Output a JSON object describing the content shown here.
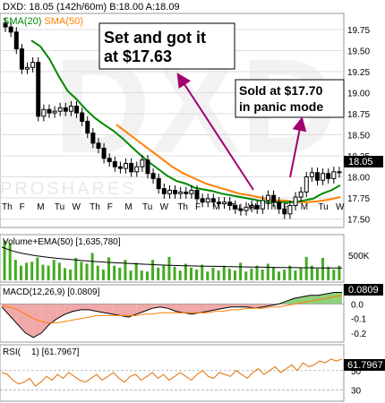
{
  "header": {
    "ticker": "DXD",
    "last": "18.05",
    "interval": "(142h/60m)",
    "bid": "B:18.00",
    "ask": "A:18.09"
  },
  "watermark": {
    "logo_text": "DXD",
    "brand": "PROSHARES"
  },
  "legend_sma20": "SMA(20)",
  "legend_sma50": "SMA(50)",
  "annotation_buy": [
    "Set and got it",
    "at $17.63"
  ],
  "annotation_sell": [
    "Sold at $17.70",
    "in panic mode"
  ],
  "last_price_label": "18.05",
  "colors": {
    "candles": "#000000",
    "sma20": "#008800",
    "sma50": "#ff7f00",
    "arrow": "#a00070",
    "volume_bar": "#44aa22",
    "ema_line": "#000000",
    "macd_fill_pos": "#8ed07a",
    "macd_fill_neg": "#f0a8a8",
    "macd_line": "#000000",
    "signal_line": "#ff7f00",
    "rsi_line": "#e07000",
    "last_label_bg": "#000000"
  },
  "chart_data": [
    {
      "type": "candlestick",
      "title": "DXD: 18.05 (142h/60m) B:18.00 A:18.09",
      "x_tick_labels": [
        "Th",
        "F",
        "M",
        "Tu",
        "W",
        "Th",
        "F",
        "M",
        "Tu",
        "W",
        "Th",
        "F",
        "M",
        "Tu",
        "W",
        "Th",
        "F",
        "M",
        "Tu",
        "W"
      ],
      "y_ticks": [
        17.5,
        17.75,
        18.0,
        18.25,
        18.5,
        18.75,
        19.0,
        19.25,
        19.5,
        19.75
      ],
      "ylim": [
        17.42,
        19.92
      ],
      "close": [
        19.78,
        19.72,
        19.52,
        19.28,
        19.3,
        19.36,
        18.72,
        18.8,
        18.76,
        18.78,
        18.82,
        18.78,
        18.84,
        18.76,
        18.66,
        18.52,
        18.4,
        18.34,
        18.22,
        18.18,
        18.12,
        18.1,
        18.16,
        18.06,
        18.12,
        18.2,
        18.04,
        17.98,
        17.86,
        17.8,
        17.84,
        17.8,
        17.82,
        17.8,
        17.84,
        17.74,
        17.7,
        17.74,
        17.7,
        17.68,
        17.7,
        17.66,
        17.62,
        17.6,
        17.64,
        17.66,
        17.62,
        17.72,
        17.78,
        17.7,
        17.62,
        17.56,
        17.66,
        17.76,
        17.82,
        18.0,
        18.05,
        17.96,
        18.04,
        17.98,
        18.06,
        18.05
      ],
      "series": [
        {
          "name": "SMA(20)",
          "values": [
            19.62,
            19.55,
            19.4,
            19.2,
            19.02,
            18.92,
            18.8,
            18.7,
            18.62,
            18.55,
            18.46,
            18.36,
            18.26,
            18.17,
            18.09,
            18.01,
            17.95,
            17.92,
            17.87,
            17.85,
            17.83,
            17.8,
            17.78,
            17.76,
            17.74,
            17.72,
            17.7,
            17.7,
            17.7,
            17.7,
            17.72,
            17.74,
            17.8,
            17.84,
            17.9
          ]
        },
        {
          "name": "SMA(50)",
          "values": [
            18.62,
            18.52,
            18.42,
            18.32,
            18.22,
            18.12,
            18.04,
            17.98,
            17.92,
            17.88,
            17.84,
            17.8,
            17.78,
            17.75,
            17.72,
            17.72,
            17.7,
            17.7,
            17.71,
            17.73,
            17.76
          ]
        }
      ]
    },
    {
      "type": "bar",
      "title": "Volume+EMA(50)",
      "value_label": "1,635,780",
      "y_ticks": [
        "500K"
      ],
      "values": [
        820,
        760,
        420,
        300,
        360,
        380,
        470,
        320,
        300,
        420,
        360,
        250,
        220,
        460,
        380,
        340,
        560,
        300,
        220,
        470,
        300,
        260,
        420,
        200,
        360,
        200,
        180,
        420,
        260,
        300,
        480,
        280,
        200,
        340,
        260,
        220,
        320,
        180,
        260,
        200,
        300,
        240,
        200,
        360,
        180,
        240,
        300,
        220,
        340,
        260,
        180,
        220,
        300,
        200,
        260,
        480,
        300,
        240,
        460,
        280,
        220,
        300
      ],
      "ema_values": [
        680,
        640,
        600,
        570,
        545,
        525,
        505,
        490,
        476,
        462,
        450,
        440,
        430,
        420,
        410,
        400,
        392,
        384,
        376,
        368,
        362,
        356,
        350,
        344,
        338,
        333,
        328,
        323,
        318,
        313,
        309,
        305,
        302,
        299,
        296,
        293,
        290,
        288,
        286,
        284,
        282,
        280,
        278,
        276,
        274,
        272,
        270,
        268,
        266,
        264,
        262,
        261,
        260,
        259,
        258,
        257,
        256,
        255,
        254,
        253,
        252,
        251
      ]
    },
    {
      "type": "area",
      "title": "MACD(12,26,9)",
      "value_label": "0.0809",
      "y_ticks": [
        0.0,
        -0.1,
        -0.2
      ],
      "ylim": [
        -0.25,
        0.12
      ],
      "macd": [
        -0.02,
        -0.08,
        -0.14,
        -0.2,
        -0.23,
        -0.2,
        -0.14,
        -0.1,
        -0.07,
        -0.05,
        -0.04,
        -0.04,
        -0.05,
        -0.06,
        -0.07,
        -0.08,
        -0.09,
        -0.07,
        -0.05,
        -0.03,
        -0.02,
        -0.03,
        -0.05,
        -0.06,
        -0.07,
        -0.06,
        -0.05,
        -0.04,
        -0.03,
        -0.02,
        -0.02,
        -0.02,
        -0.03,
        -0.02,
        -0.01,
        0.0,
        0.02,
        0.04,
        0.05,
        0.06,
        0.06,
        0.07,
        0.08,
        0.08
      ],
      "signal": [
        -0.01,
        -0.02,
        -0.04,
        -0.07,
        -0.1,
        -0.12,
        -0.13,
        -0.13,
        -0.12,
        -0.11,
        -0.1,
        -0.09,
        -0.08,
        -0.08,
        -0.08,
        -0.08,
        -0.08,
        -0.08,
        -0.07,
        -0.07,
        -0.06,
        -0.06,
        -0.06,
        -0.06,
        -0.06,
        -0.06,
        -0.06,
        -0.05,
        -0.05,
        -0.04,
        -0.04,
        -0.03,
        -0.03,
        -0.03,
        -0.02,
        -0.02,
        -0.01,
        0.0,
        0.01,
        0.02,
        0.03,
        0.04,
        0.05,
        0.06
      ]
    },
    {
      "type": "line",
      "title": "RSI(14)",
      "title_text": "RSI(",
      "title_tail": "1) [61.7967]",
      "value_label": "61.7967",
      "y_ticks": [
        50,
        30
      ],
      "ylim": [
        20,
        75
      ],
      "values": [
        48,
        46,
        40,
        36,
        38,
        42,
        34,
        38,
        44,
        40,
        46,
        42,
        48,
        44,
        40,
        38,
        42,
        46,
        40,
        44,
        48,
        42,
        38,
        44,
        46,
        40,
        44,
        48,
        42,
        46,
        40,
        44,
        48,
        44,
        40,
        46,
        50,
        44,
        42,
        48,
        46,
        44,
        50,
        46,
        42,
        48,
        52,
        46,
        50,
        54,
        48,
        52,
        56,
        50,
        58,
        54,
        56,
        60,
        58,
        62,
        60,
        62
      ]
    }
  ]
}
